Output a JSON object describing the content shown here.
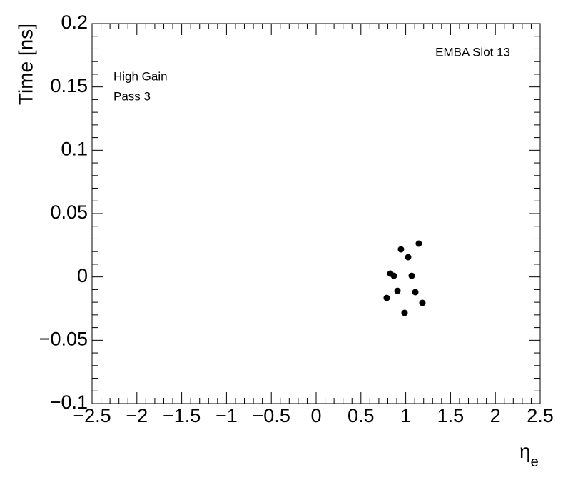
{
  "chart_data": {
    "type": "scatter",
    "y_label": "Time [ns]",
    "x_label": "η",
    "x_label_subscript": "e",
    "annotations": [
      "EMBA Slot 13",
      "High Gain",
      "Pass 3"
    ],
    "color": "#000000",
    "series": [
      {
        "x": [
          0.788,
          0.828,
          0.868,
          0.908,
          0.947,
          0.987,
          1.027,
          1.067,
          1.107,
          1.146,
          1.186
        ],
        "values": [
          -0.0166,
          0.0026,
          0.0009,
          -0.011,
          0.0218,
          -0.0284,
          0.0156,
          0.0009,
          -0.012,
          0.0263,
          -0.0205
        ]
      }
    ],
    "xlim": [
      -2.5,
      2.5
    ],
    "xticks": [
      {
        "value": -2.5,
        "label": "−2.5"
      },
      {
        "value": -2,
        "label": "−2"
      },
      {
        "value": -1.5,
        "label": "−1.5"
      },
      {
        "value": -1,
        "label": "−1"
      },
      {
        "value": -0.5,
        "label": "−0.5"
      },
      0,
      0.5,
      1,
      1.5,
      2,
      2.5
    ],
    "ylim": [
      -0.1,
      0.2
    ],
    "yticks": [
      {
        "value": -0.1,
        "label": "−0.1"
      },
      {
        "value": -0.05,
        "label": "−0.05"
      },
      0,
      0.05,
      0.1,
      0.15,
      0.2
    ]
  }
}
